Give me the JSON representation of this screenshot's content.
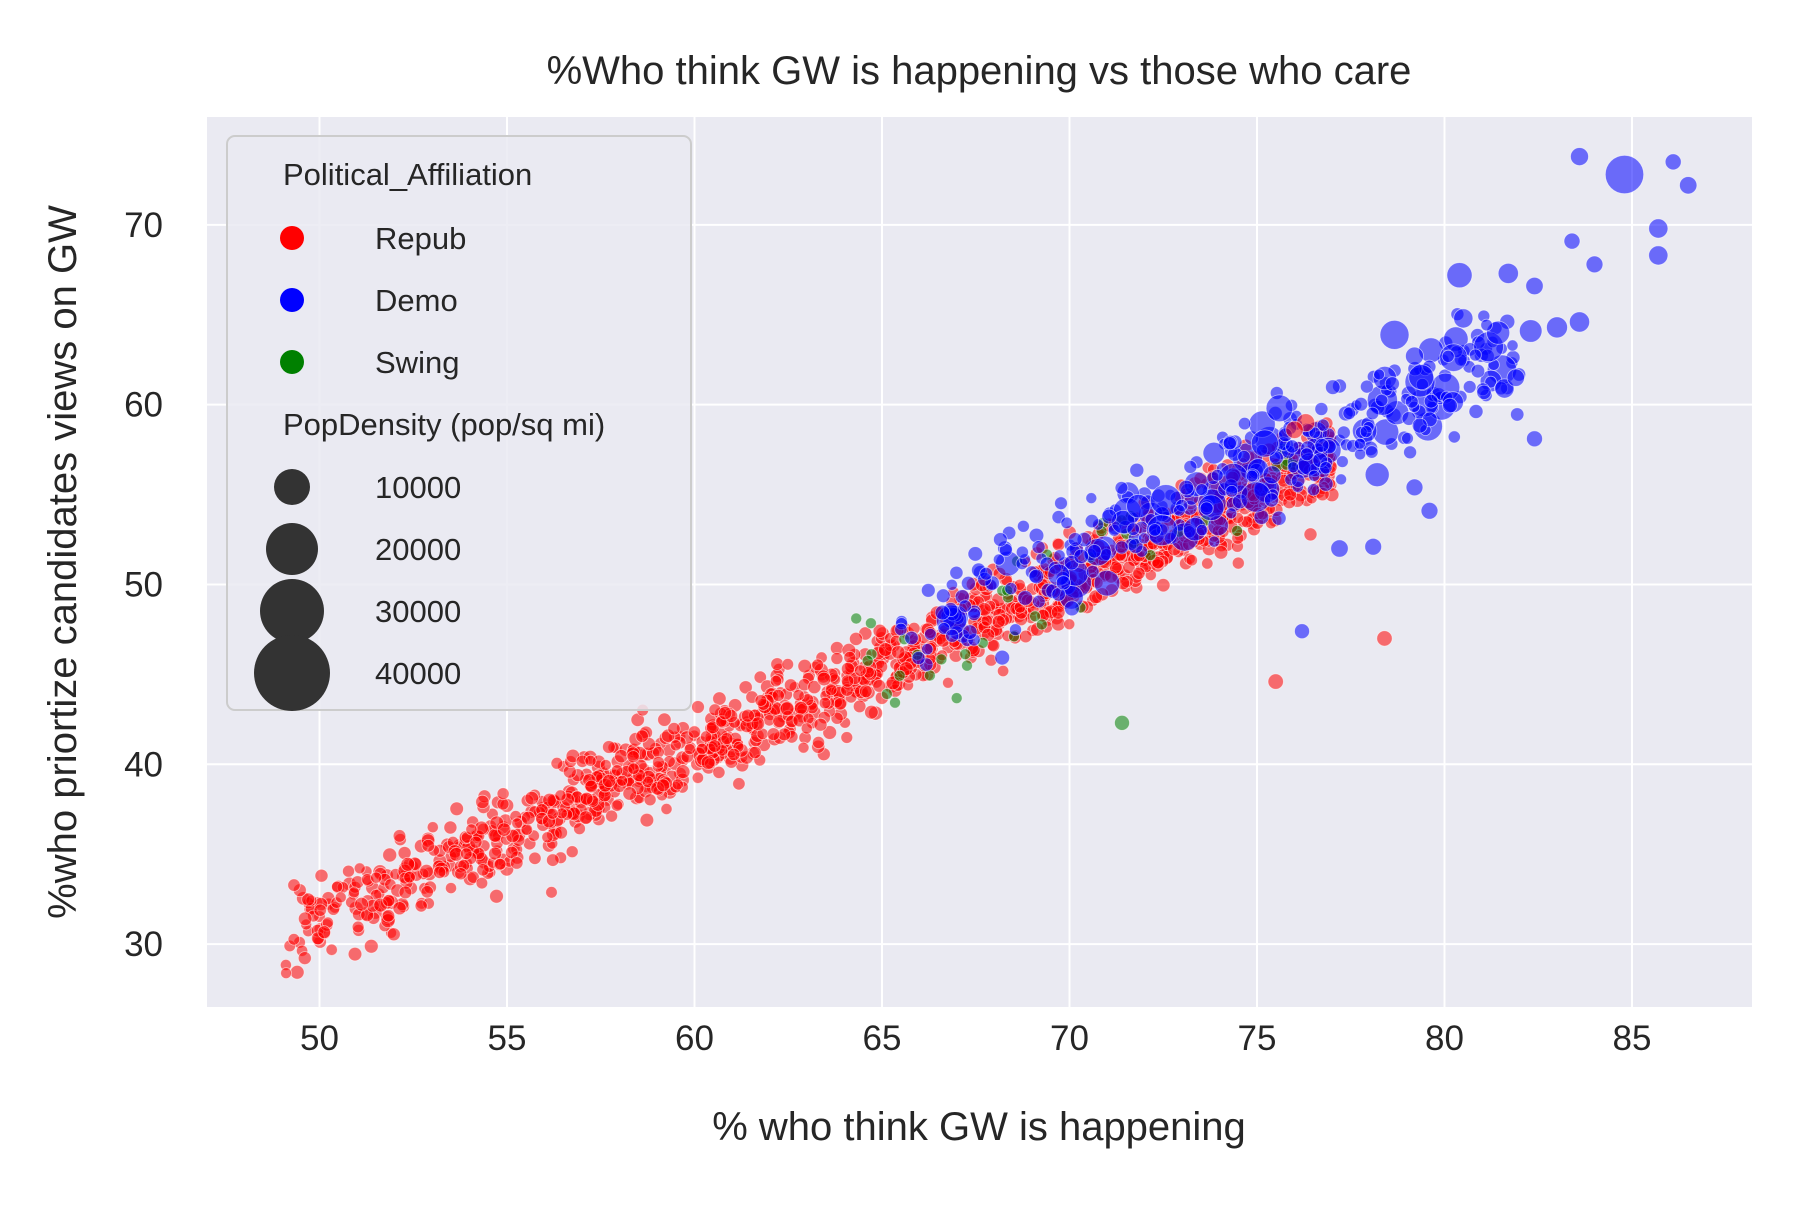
{
  "chart_data": {
    "type": "scatter",
    "title": "%Who think GW is happening vs those who care",
    "xlabel": "% who think GW is happening",
    "ylabel": "%who priortize candidates views on GW",
    "xlim": [
      47,
      88.2
    ],
    "ylim": [
      26.5,
      76
    ],
    "xticks": [
      50,
      55,
      60,
      65,
      70,
      75,
      80,
      85
    ],
    "yticks": [
      30,
      40,
      50,
      60,
      70
    ],
    "grid": true,
    "legend_placement": "upper-left",
    "hue": {
      "title": "Political_Affiliation",
      "entries": [
        {
          "label": "Repub",
          "color": "#ff0000"
        },
        {
          "label": "Demo",
          "color": "#0000ff"
        },
        {
          "label": "Swing",
          "color": "#008000"
        }
      ]
    },
    "size": {
      "title": "PopDensity (pop/sq mi)",
      "entries": [
        {
          "label": "10000",
          "value": 10000
        },
        {
          "label": "20000",
          "value": 20000
        },
        {
          "label": "30000",
          "value": 30000
        },
        {
          "label": "40000",
          "value": 40000
        }
      ]
    },
    "highlighted_points": [
      {
        "x": 84.8,
        "y": 72.8,
        "popdensity": 45000,
        "group": "Demo"
      },
      {
        "x": 83.6,
        "y": 73.8,
        "popdensity": 3000,
        "group": "Demo"
      },
      {
        "x": 86.5,
        "y": 72.2,
        "popdensity": 2500,
        "group": "Demo"
      },
      {
        "x": 86.1,
        "y": 73.5,
        "popdensity": 1500,
        "group": "Demo"
      },
      {
        "x": 85.7,
        "y": 69.8,
        "popdensity": 4000,
        "group": "Demo"
      },
      {
        "x": 85.7,
        "y": 68.3,
        "popdensity": 4000,
        "group": "Demo"
      },
      {
        "x": 84.0,
        "y": 67.8,
        "popdensity": 2000,
        "group": "Demo"
      },
      {
        "x": 83.4,
        "y": 69.1,
        "popdensity": 1500,
        "group": "Demo"
      },
      {
        "x": 80.4,
        "y": 67.2,
        "popdensity": 12000,
        "group": "Demo"
      },
      {
        "x": 81.7,
        "y": 67.3,
        "popdensity": 5000,
        "group": "Demo"
      },
      {
        "x": 82.4,
        "y": 66.6,
        "popdensity": 2500,
        "group": "Demo"
      },
      {
        "x": 80.5,
        "y": 64.8,
        "popdensity": 4000,
        "group": "Demo"
      },
      {
        "x": 82.3,
        "y": 64.1,
        "popdensity": 8000,
        "group": "Demo"
      },
      {
        "x": 83.0,
        "y": 64.3,
        "popdensity": 6000,
        "group": "Demo"
      },
      {
        "x": 83.6,
        "y": 64.6,
        "popdensity": 5000,
        "group": "Demo"
      },
      {
        "x": 81.6,
        "y": 60.9,
        "popdensity": 4000,
        "group": "Demo"
      },
      {
        "x": 81.9,
        "y": 61.5,
        "popdensity": 2500,
        "group": "Demo"
      },
      {
        "x": 79.2,
        "y": 62.7,
        "popdensity": 3000,
        "group": "Demo"
      },
      {
        "x": 82.4,
        "y": 58.1,
        "popdensity": 1500,
        "group": "Demo"
      },
      {
        "x": 75.6,
        "y": 59.8,
        "popdensity": 15000,
        "group": "Demo"
      },
      {
        "x": 76.3,
        "y": 59.0,
        "popdensity": 3000,
        "group": "Repub"
      },
      {
        "x": 76.0,
        "y": 58.6,
        "popdensity": 2500,
        "group": "Repub"
      },
      {
        "x": 75.4,
        "y": 56.1,
        "popdensity": 3000,
        "group": "Demo"
      },
      {
        "x": 77.2,
        "y": 52.0,
        "popdensity": 2500,
        "group": "Demo"
      },
      {
        "x": 78.1,
        "y": 52.1,
        "popdensity": 2000,
        "group": "Demo"
      },
      {
        "x": 79.6,
        "y": 54.1,
        "popdensity": 2000,
        "group": "Demo"
      },
      {
        "x": 79.2,
        "y": 55.4,
        "popdensity": 2000,
        "group": "Demo"
      },
      {
        "x": 78.4,
        "y": 47.0,
        "popdensity": 1200,
        "group": "Repub"
      },
      {
        "x": 75.5,
        "y": 44.6,
        "popdensity": 1200,
        "group": "Repub"
      },
      {
        "x": 76.2,
        "y": 47.4,
        "popdensity": 1000,
        "group": "Demo"
      },
      {
        "x": 71.4,
        "y": 42.3,
        "popdensity": 1000,
        "group": "Swing"
      }
    ]
  }
}
